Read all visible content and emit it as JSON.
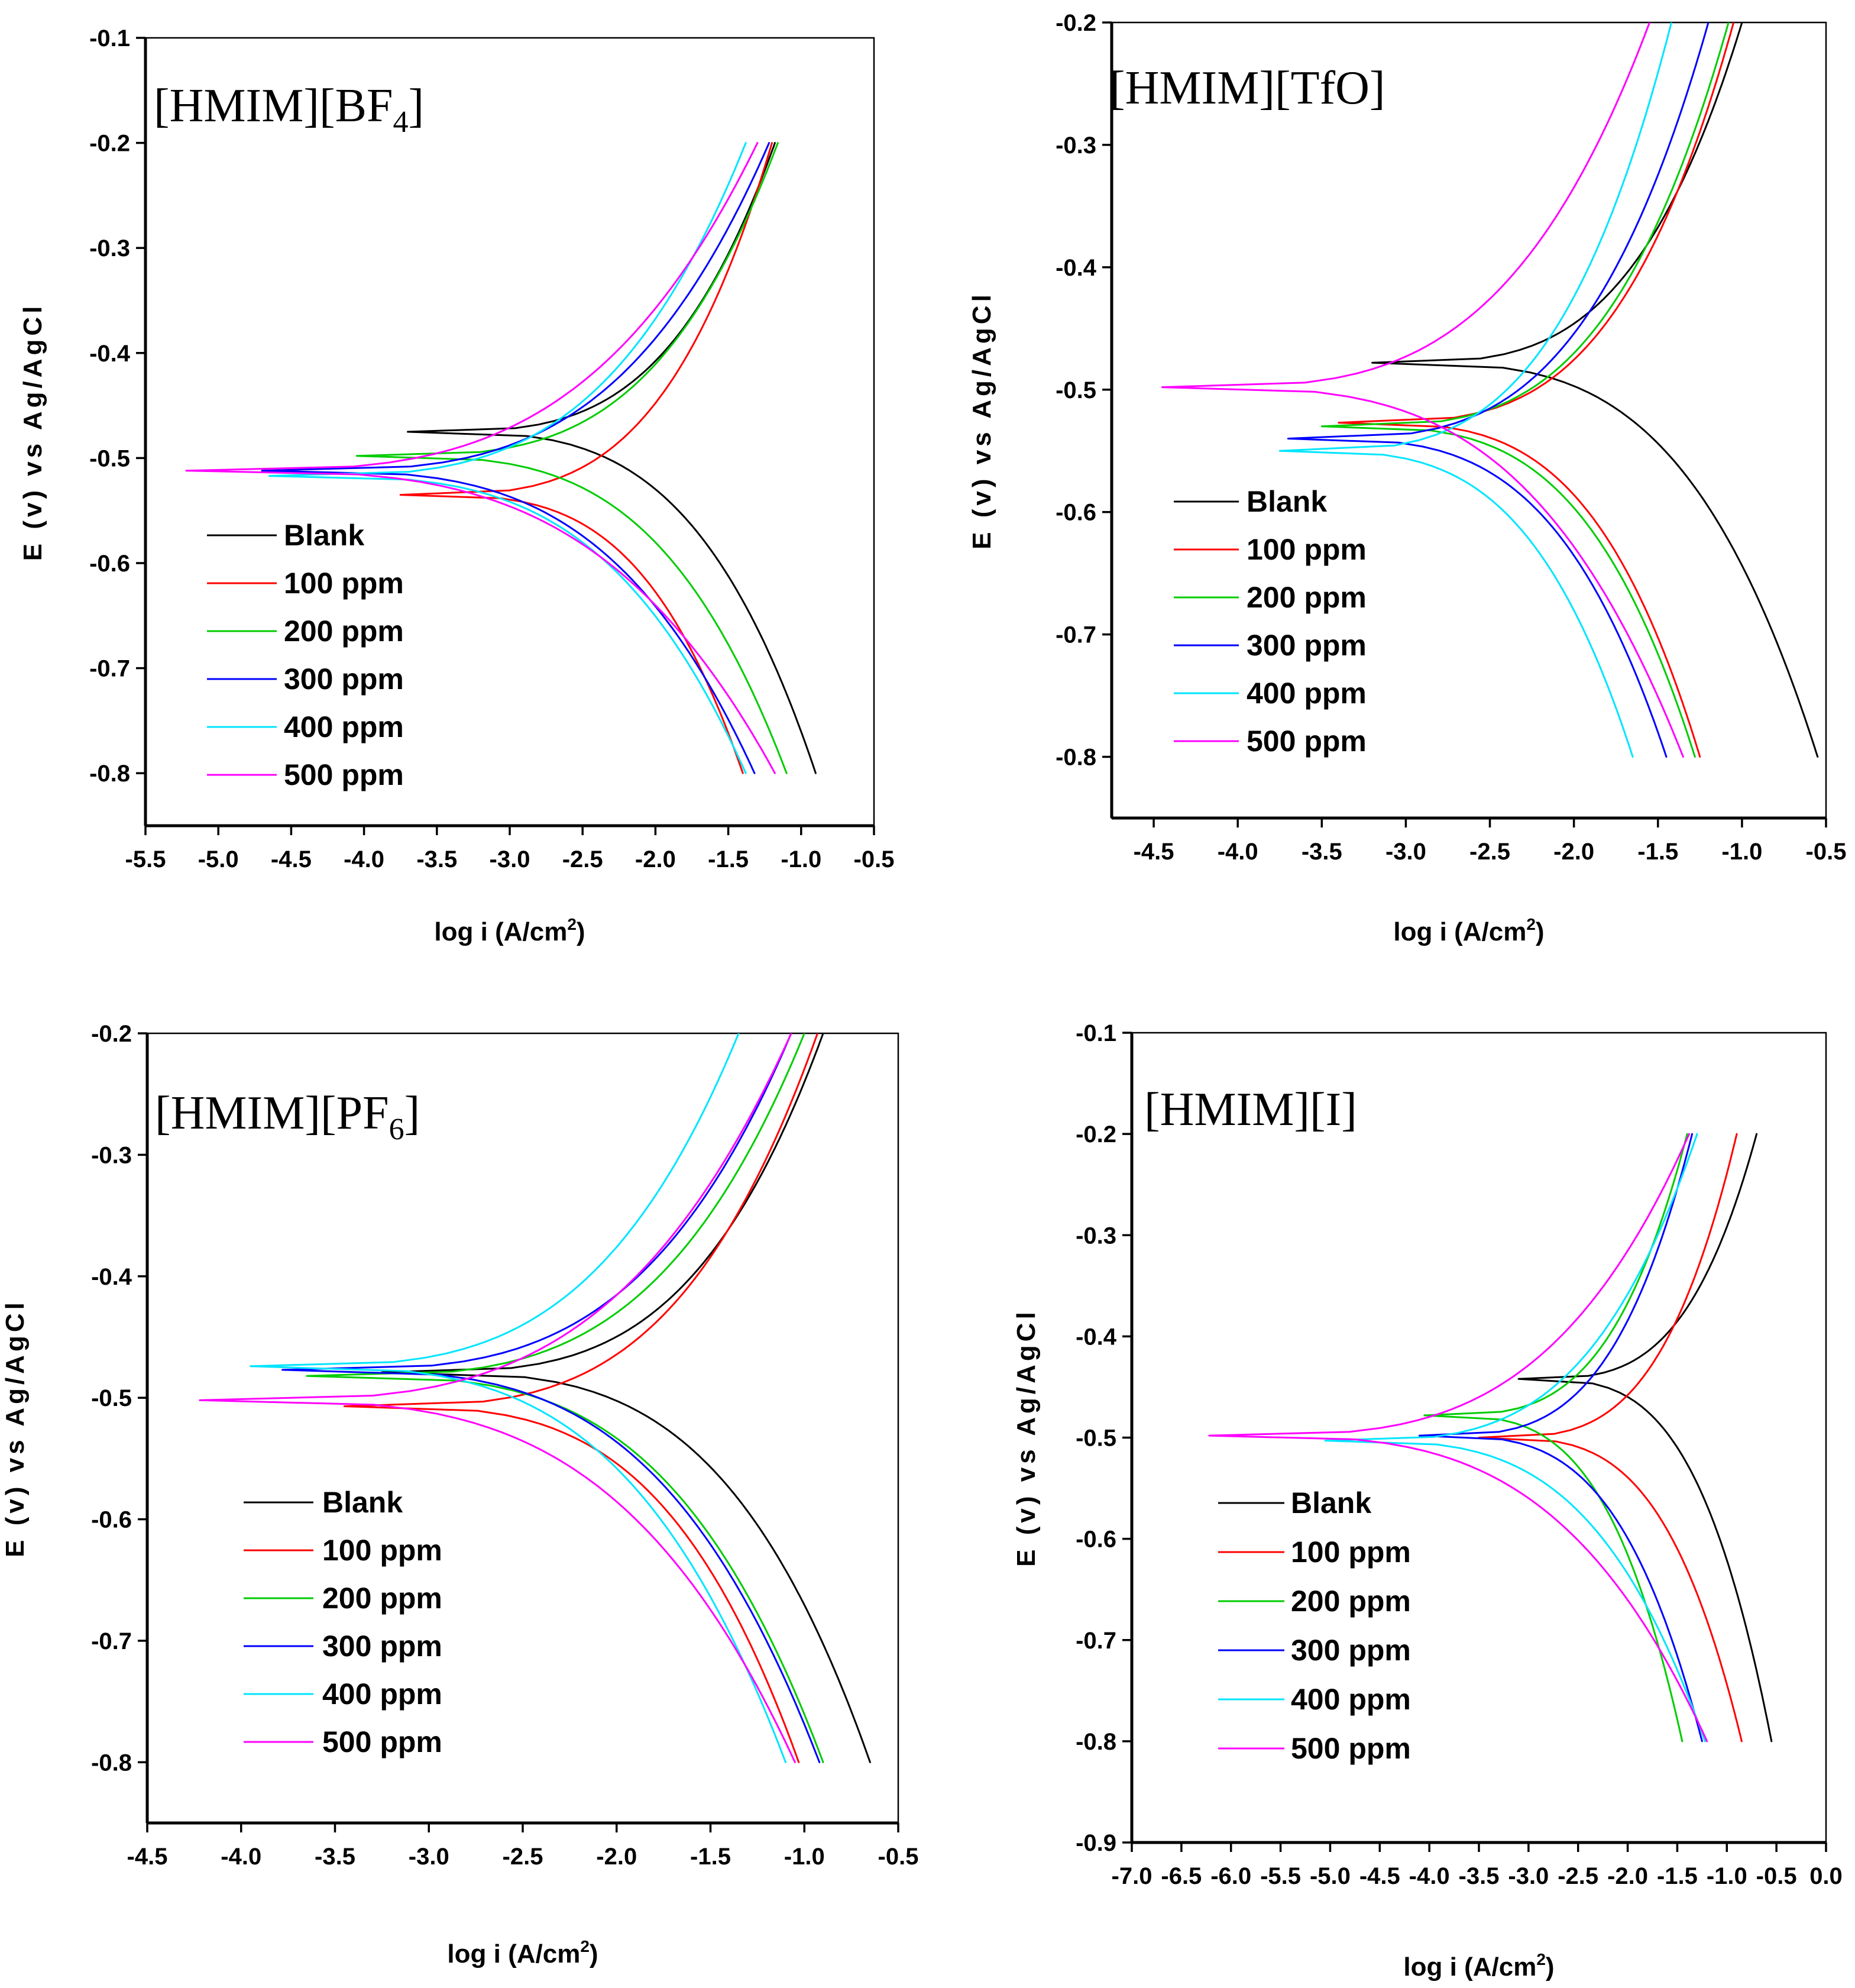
{
  "legend_colors": {
    "Blank": "#000000",
    "100 ppm": "#ff0000",
    "200 ppm": "#00cc00",
    "300 ppm": "#0000ff",
    "400 ppm": "#00e5ff",
    "500 ppm": "#ff00ff"
  },
  "chart_data": [
    {
      "type": "line",
      "title": "[HMIM][BF",
      "title_sub": "4",
      "title_suffix": "]",
      "xlabel": "log i (A/cm",
      "xlabel_sup": "2",
      "xlabel_suffix": ")",
      "ylabel": "E (v) vs Ag/AgCl",
      "xlim": [
        -5.5,
        -0.5
      ],
      "ylim": [
        -0.85,
        -0.1
      ],
      "xticks": [
        -5.5,
        -5.0,
        -4.5,
        -4.0,
        -3.5,
        -3.0,
        -2.5,
        -2.0,
        -1.5,
        -1.0,
        -0.5
      ],
      "xtick_labels": [
        "-5.5",
        "-5.0",
        "-4.5",
        "-4.0",
        "-3.5",
        "-3.0",
        "-2.5",
        "-2.0",
        "-1.5",
        "-1.0",
        "-0.5"
      ],
      "yticks": [
        -0.1,
        -0.2,
        -0.3,
        -0.4,
        -0.5,
        -0.6,
        -0.7,
        -0.8
      ],
      "ytick_labels": [
        "-0.1",
        "-0.2",
        "-0.3",
        "-0.4",
        "-0.5",
        "-0.6",
        "-0.7",
        "-0.8"
      ],
      "legend": [
        "Blank",
        "100 ppm",
        "200 ppm",
        "300 ppm",
        "400 ppm",
        "500 ppm"
      ],
      "legend_position": "lower-left",
      "series": [
        {
          "name": "Blank",
          "ecorr": -0.475,
          "xmin": -3.7,
          "x_top": -1.18,
          "x_bottom": -0.9
        },
        {
          "name": "100 ppm",
          "ecorr": -0.535,
          "xmin": -3.75,
          "x_top": -1.2,
          "x_bottom": -1.4
        },
        {
          "name": "200 ppm",
          "ecorr": -0.498,
          "xmin": -4.05,
          "x_top": -1.16,
          "x_bottom": -1.1
        },
        {
          "name": "300 ppm",
          "ecorr": -0.512,
          "xmin": -4.7,
          "x_top": -1.22,
          "x_bottom": -1.32
        },
        {
          "name": "400 ppm",
          "ecorr": -0.517,
          "xmin": -4.65,
          "x_top": -1.38,
          "x_bottom": -1.38
        },
        {
          "name": "500 ppm",
          "ecorr": -0.512,
          "xmin": -5.22,
          "x_top": -1.3,
          "x_bottom": -1.18
        }
      ]
    },
    {
      "type": "line",
      "title": "[HMIM][TfO]",
      "title_sub": "",
      "title_suffix": "",
      "xlabel": "log i (A/cm",
      "xlabel_sup": "2",
      "xlabel_suffix": ")",
      "ylabel": "E (v) vs Ag/AgCl",
      "xlim": [
        -4.75,
        -0.5
      ],
      "ylim": [
        -0.85,
        -0.2
      ],
      "xticks": [
        -4.5,
        -4.0,
        -3.5,
        -3.0,
        -2.5,
        -2.0,
        -1.5,
        -1.0,
        -0.5
      ],
      "xtick_labels": [
        "-4.5",
        "-4.0",
        "-3.5",
        "-3.0",
        "-2.5",
        "-2.0",
        "-1.5",
        "-1.0",
        "-0.5"
      ],
      "yticks": [
        -0.2,
        -0.3,
        -0.4,
        -0.5,
        -0.6,
        -0.7,
        -0.8
      ],
      "ytick_labels": [
        "-0.2",
        "-0.3",
        "-0.4",
        "-0.5",
        "-0.6",
        "-0.7",
        "-0.8"
      ],
      "legend": [
        "Blank",
        "100 ppm",
        "200 ppm",
        "300 ppm",
        "400 ppm",
        "500 ppm"
      ],
      "legend_position": "lower-left",
      "series": [
        {
          "name": "Blank",
          "ecorr": -0.478,
          "xmin": -3.2,
          "x_top": -1.0,
          "x_bottom": -0.55
        },
        {
          "name": "100 ppm",
          "ecorr": -0.527,
          "xmin": -3.4,
          "x_top": -1.05,
          "x_bottom": -1.25
        },
        {
          "name": "200 ppm",
          "ecorr": -0.53,
          "xmin": -3.5,
          "x_top": -1.08,
          "x_bottom": -1.28
        },
        {
          "name": "300 ppm",
          "ecorr": -0.54,
          "xmin": -3.7,
          "x_top": -1.2,
          "x_bottom": -1.45
        },
        {
          "name": "400 ppm",
          "ecorr": -0.55,
          "xmin": -3.75,
          "x_top": -1.42,
          "x_bottom": -1.65
        },
        {
          "name": "500 ppm",
          "ecorr": -0.498,
          "xmin": -4.45,
          "x_top": -1.55,
          "x_bottom": -1.35
        }
      ]
    },
    {
      "type": "line",
      "title": "[HMIM][PF",
      "title_sub": "6",
      "title_suffix": "]",
      "xlabel": "log i (A/cm",
      "xlabel_sup": "2",
      "xlabel_suffix": ")",
      "ylabel": "E (v) vs Ag/AgCl",
      "xlim": [
        -4.5,
        -0.5
      ],
      "ylim": [
        -0.85,
        -0.2
      ],
      "xticks": [
        -4.5,
        -4.0,
        -3.5,
        -3.0,
        -2.5,
        -2.0,
        -1.5,
        -1.0,
        -0.5
      ],
      "xtick_labels": [
        "-4.5",
        "-4.0",
        "-3.5",
        "-3.0",
        "-2.5",
        "-2.0",
        "-1.5",
        "-1.0",
        "-0.5"
      ],
      "yticks": [
        -0.2,
        -0.3,
        -0.4,
        -0.5,
        -0.6,
        -0.7,
        -0.8
      ],
      "ytick_labels": [
        "-0.2",
        "-0.3",
        "-0.4",
        "-0.5",
        "-0.6",
        "-0.7",
        "-0.8"
      ],
      "legend": [
        "Blank",
        "100 ppm",
        "200 ppm",
        "300 ppm",
        "400 ppm",
        "500 ppm"
      ],
      "legend_position": "lower-left",
      "series": [
        {
          "name": "Blank",
          "ecorr": -0.479,
          "xmin": -3.25,
          "x_top": -0.9,
          "x_bottom": -0.65
        },
        {
          "name": "100 ppm",
          "ecorr": -0.507,
          "xmin": -3.45,
          "x_top": -0.93,
          "x_bottom": -1.03
        },
        {
          "name": "200 ppm",
          "ecorr": -0.482,
          "xmin": -3.65,
          "x_top": -1.0,
          "x_bottom": -0.9
        },
        {
          "name": "300 ppm",
          "ecorr": -0.477,
          "xmin": -3.78,
          "x_top": -1.07,
          "x_bottom": -0.92
        },
        {
          "name": "400 ppm",
          "ecorr": -0.474,
          "xmin": -3.95,
          "x_top": -1.35,
          "x_bottom": -1.1
        },
        {
          "name": "500 ppm",
          "ecorr": -0.502,
          "xmin": -4.22,
          "x_top": -1.07,
          "x_bottom": -1.05
        }
      ]
    },
    {
      "type": "line",
      "title": "[HMIM][I]",
      "title_sub": "",
      "title_suffix": "",
      "xlabel": "log i (A/cm",
      "xlabel_sup": "2",
      "xlabel_suffix": ")",
      "ylabel": "E (v) vs Ag/AgCl",
      "xlim": [
        -7.0,
        0.0
      ],
      "ylim": [
        -0.9,
        -0.1
      ],
      "xticks": [
        -7.0,
        -6.5,
        -6.0,
        -5.5,
        -5.0,
        -4.5,
        -4.0,
        -3.5,
        -3.0,
        -2.5,
        -2.0,
        -1.5,
        -1.0,
        -0.5,
        0.0
      ],
      "xtick_labels": [
        "-7.0",
        "-6.5",
        "-6.0",
        "-5.5",
        "-5.0",
        "-4.5",
        "-4.0",
        "-3.5",
        "-3.0",
        "-2.5",
        "-2.0",
        "-1.5",
        "-1.0",
        "-0.5",
        "0.0"
      ],
      "yticks": [
        -0.1,
        -0.2,
        -0.3,
        -0.4,
        -0.5,
        -0.6,
        -0.7,
        -0.8,
        -0.9
      ],
      "ytick_labels": [
        "-0.1",
        "-0.2",
        "-0.3",
        "-0.4",
        "-0.5",
        "-0.6",
        "-0.7",
        "-0.8",
        "-0.9"
      ],
      "legend": [
        "Blank",
        "100 ppm",
        "200 ppm",
        "300 ppm",
        "400 ppm",
        "500 ppm"
      ],
      "legend_position": "lower-left",
      "series": [
        {
          "name": "Blank",
          "ecorr": -0.442,
          "xmin": -3.1,
          "x_top": -0.7,
          "x_bottom": -0.55
        },
        {
          "name": "100 ppm",
          "ecorr": -0.5,
          "xmin": -3.5,
          "x_top": -0.9,
          "x_bottom": -0.85
        },
        {
          "name": "200 ppm",
          "ecorr": -0.478,
          "xmin": -4.05,
          "x_top": -1.4,
          "x_bottom": -1.45
        },
        {
          "name": "300 ppm",
          "ecorr": -0.498,
          "xmin": -4.1,
          "x_top": -1.35,
          "x_bottom": -1.25
        },
        {
          "name": "400 ppm",
          "ecorr": -0.503,
          "xmin": -5.05,
          "x_top": -1.3,
          "x_bottom": -1.22
        },
        {
          "name": "500 ppm",
          "ecorr": -0.498,
          "xmin": -6.22,
          "x_top": -1.38,
          "x_bottom": -1.2
        }
      ]
    }
  ]
}
